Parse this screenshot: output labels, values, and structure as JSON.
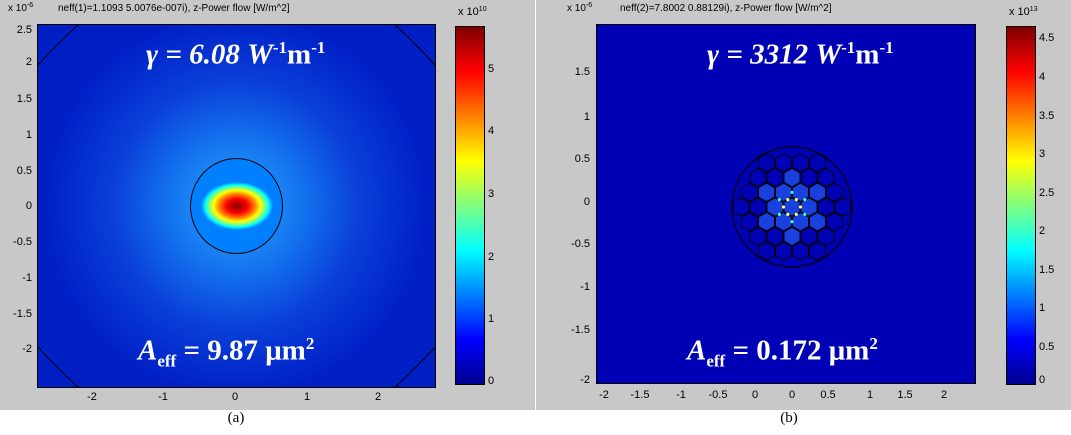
{
  "panel_a": {
    "scale_label": "x 10",
    "scale_exp": "-6",
    "title": "neff(1)=1.1093 5.0076e-007i),  z-Power flow [W/m^2]",
    "gamma_prefix": "γ = 6.08 W",
    "gamma_exp1": "-1",
    "gamma_mid": "m",
    "gamma_exp2": "-1",
    "aeff_prefix": "A",
    "aeff_sub": "eff",
    "aeff_value": " = 9.87 μm",
    "aeff_exp": "2",
    "y_ticks": [
      "2.5",
      "2",
      "1.5",
      "1",
      "0.5",
      "0",
      "-0.5",
      "-1",
      "-1.5",
      "-2"
    ],
    "x_ticks": [
      "-2",
      "-1",
      "0",
      "1",
      "2"
    ],
    "cbar_scale_label": "x 10",
    "cbar_scale_exp": "10",
    "cbar_ticks": [
      "5",
      "4",
      "3",
      "2",
      "1",
      "0"
    ],
    "caption": "(a)"
  },
  "panel_b": {
    "scale_label": "x 10",
    "scale_exp": "-6",
    "title": "neff(2)=7.8002 0.88129i),  z-Power flow [W/m^2]",
    "gamma_prefix": "γ = 3312 W",
    "gamma_exp1": "-1",
    "gamma_mid": "m",
    "gamma_exp2": "-1",
    "aeff_prefix": "A",
    "aeff_sub": "eff",
    "aeff_value": " = 0.172 μm",
    "aeff_exp": "2",
    "y_ticks": [
      "1.5",
      "1",
      "0.5",
      "0",
      "-0.5",
      "-1",
      "-1.5",
      "-2"
    ],
    "x_ticks": [
      "-2",
      "-1.5",
      "-1",
      "-0.5",
      "0",
      "0.5",
      "1",
      "1.5",
      "2"
    ],
    "cbar_scale_label": "x 10",
    "cbar_scale_exp": "13",
    "cbar_ticks": [
      "4.5",
      "4",
      "3.5",
      "3",
      "2.5",
      "2",
      "1.5",
      "1",
      "0.5",
      "0"
    ],
    "caption": "(b)"
  },
  "colors": {
    "figure_bg": "#c8c8c8",
    "plot_bg": "#0000b4",
    "annotation": "#ffffff"
  }
}
